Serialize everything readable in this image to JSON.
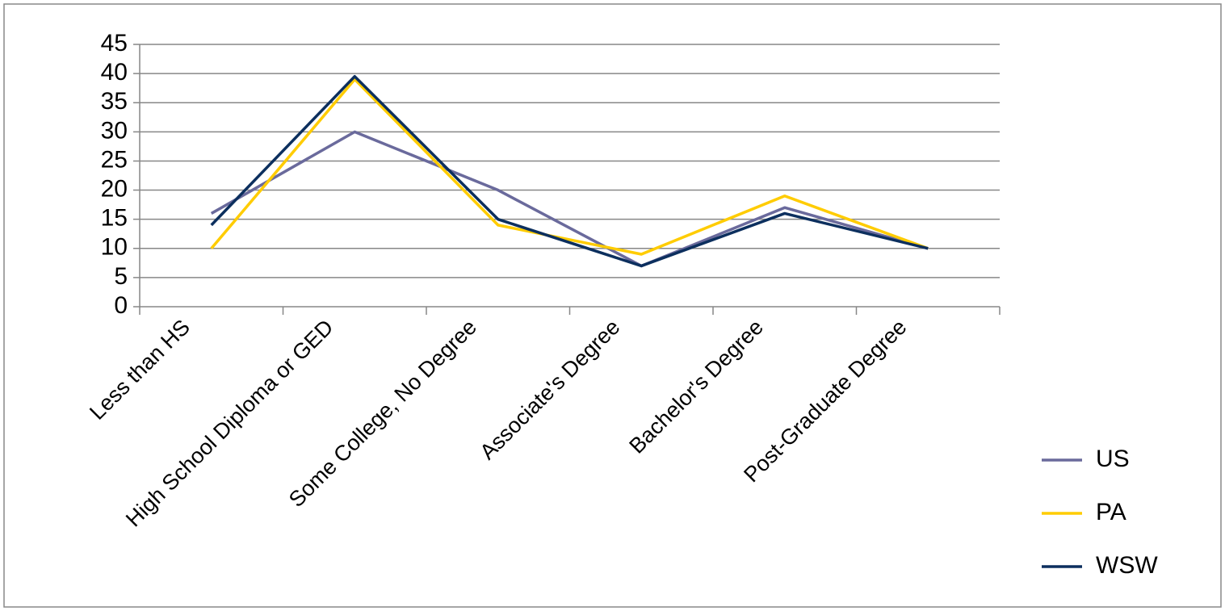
{
  "chart_data": {
    "type": "line",
    "categories": [
      "Less than HS",
      "High School Diploma or GED",
      "Some College, No Degree",
      "Associate's Degree",
      "Bachelor's Degree",
      "Post-Graduate Degree"
    ],
    "series": [
      {
        "name": "US",
        "color": "#6a6a9c",
        "values": [
          16,
          30,
          20,
          7,
          17,
          10
        ]
      },
      {
        "name": "PA",
        "color": "#ffcc00",
        "values": [
          10,
          39,
          14,
          9,
          19,
          10
        ]
      },
      {
        "name": "WSW",
        "color": "#0c2f5e",
        "values": [
          14,
          39.5,
          15,
          7,
          16,
          10
        ]
      }
    ],
    "ylim": [
      0,
      45
    ],
    "yticks": [
      0,
      5,
      10,
      15,
      20,
      25,
      30,
      35,
      40,
      45
    ],
    "grid": true,
    "legend": "right"
  }
}
